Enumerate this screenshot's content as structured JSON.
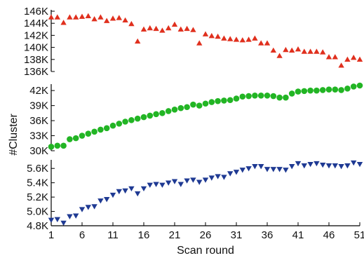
{
  "chart_data": {
    "type": "scatter",
    "xlabel": "Scan round",
    "ylabel": "#Cluster",
    "xlim": [
      1,
      51
    ],
    "xticks": [
      1,
      6,
      11,
      16,
      21,
      26,
      31,
      36,
      41,
      46,
      51
    ],
    "x": [
      1,
      2,
      3,
      4,
      5,
      6,
      7,
      8,
      9,
      10,
      11,
      12,
      13,
      14,
      15,
      16,
      17,
      18,
      19,
      20,
      21,
      22,
      23,
      24,
      25,
      26,
      27,
      28,
      29,
      30,
      31,
      32,
      33,
      34,
      35,
      36,
      37,
      38,
      39,
      40,
      41,
      42,
      43,
      44,
      45,
      46,
      47,
      48,
      49,
      50,
      51
    ],
    "panels": [
      {
        "marker": "triangle-up",
        "color": "#e0301e",
        "ylim": [
          136000,
          146000
        ],
        "yticks": [
          136000,
          138000,
          140000,
          142000,
          144000,
          146000
        ],
        "ytick_labels": [
          "136K",
          "138K",
          "140K",
          "142K",
          "144K",
          "146K"
        ],
        "values": [
          145000,
          145000,
          144100,
          145000,
          145000,
          145100,
          145200,
          144700,
          145000,
          144400,
          144800,
          144900,
          144500,
          143900,
          141000,
          143000,
          143200,
          143100,
          142800,
          143200,
          143800,
          143000,
          143100,
          142900,
          140700,
          142200,
          141900,
          141800,
          141500,
          141400,
          141300,
          141200,
          141300,
          141500,
          140700,
          140700,
          139500,
          138600,
          139600,
          139500,
          139700,
          139300,
          139300,
          139300,
          139200,
          138400,
          138400,
          137000,
          138000,
          138300,
          138000
        ]
      },
      {
        "marker": "circle",
        "color": "#22b524",
        "ylim": [
          30000,
          43000
        ],
        "yticks": [
          30000,
          33000,
          36000,
          39000,
          42000
        ],
        "ytick_labels": [
          "30K",
          "33K",
          "36K",
          "39K",
          "42K"
        ],
        "values": [
          30800,
          31000,
          31000,
          32300,
          32500,
          33000,
          33400,
          33800,
          34200,
          34500,
          35000,
          35400,
          35800,
          36100,
          36400,
          36700,
          37000,
          37300,
          37500,
          37900,
          38200,
          38500,
          38700,
          39200,
          39000,
          39400,
          39700,
          39900,
          40000,
          40100,
          40400,
          40800,
          40900,
          41000,
          41000,
          41000,
          40900,
          40600,
          40600,
          41400,
          41800,
          41900,
          42000,
          42000,
          42100,
          42200,
          42200,
          42100,
          42400,
          42800,
          43000
        ]
      },
      {
        "marker": "triangle-down",
        "color": "#1f3a93",
        "ylim": [
          4800,
          5700
        ],
        "yticks": [
          4800,
          5000,
          5200,
          5400,
          5600
        ],
        "ytick_labels": [
          "4.8K",
          "5.0K",
          "5.2K",
          "5.4K",
          "5.6K"
        ],
        "values": [
          4880,
          4890,
          4840,
          4930,
          4940,
          5030,
          5060,
          5070,
          5150,
          5170,
          5230,
          5280,
          5290,
          5320,
          5250,
          5320,
          5370,
          5380,
          5370,
          5400,
          5420,
          5380,
          5430,
          5440,
          5410,
          5440,
          5470,
          5490,
          5480,
          5530,
          5550,
          5580,
          5600,
          5630,
          5630,
          5590,
          5590,
          5590,
          5580,
          5630,
          5670,
          5640,
          5660,
          5670,
          5650,
          5640,
          5640,
          5630,
          5640,
          5680,
          5660
        ]
      }
    ]
  }
}
